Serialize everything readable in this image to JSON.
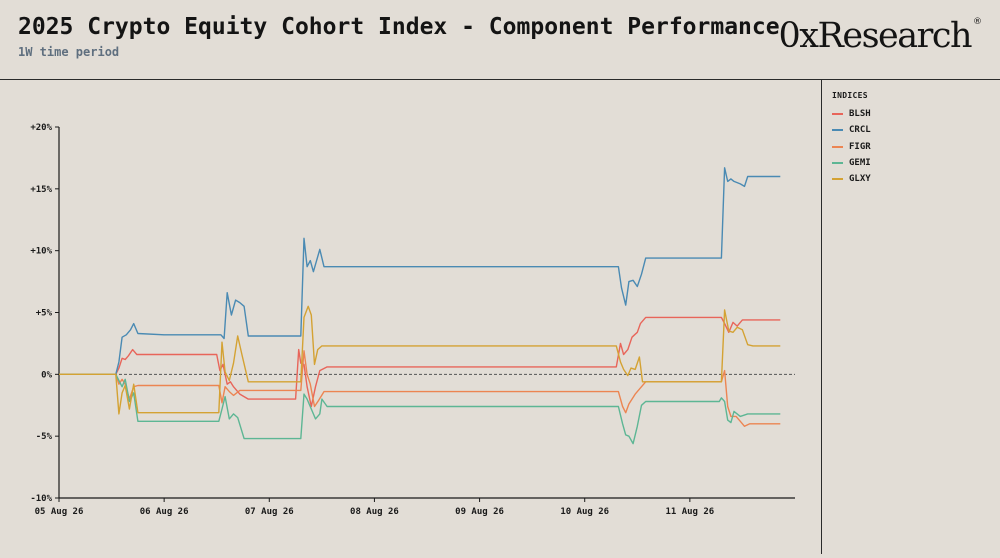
{
  "header": {
    "title": "2025 Crypto Equity Cohort Index - Component Performance",
    "subtitle": "1W time period",
    "logo": "0xResearch",
    "logo_mark": "®"
  },
  "legend": {
    "title": "INDICES"
  },
  "chart_data": {
    "type": "line",
    "title": "2025 Crypto Equity Cohort Index - Component Performance",
    "subtitle": "1W time period",
    "xlabel": "",
    "ylabel": "",
    "x_unit": "day",
    "xlim": [
      0,
      7.0
    ],
    "ylim": [
      -10,
      20
    ],
    "x_ticks": [
      {
        "label": "05 Aug 26",
        "value": 0
      },
      {
        "label": "06 Aug 26",
        "value": 1
      },
      {
        "label": "07 Aug 26",
        "value": 2
      },
      {
        "label": "08 Aug 26",
        "value": 3
      },
      {
        "label": "09 Aug 26",
        "value": 4
      },
      {
        "label": "10 Aug 26",
        "value": 5
      },
      {
        "label": "11 Aug 26",
        "value": 6
      }
    ],
    "y_ticks": [
      {
        "label": "+20%",
        "value": 20
      },
      {
        "label": "+15%",
        "value": 15
      },
      {
        "label": "+10%",
        "value": 10
      },
      {
        "label": "+5%",
        "value": 5
      },
      {
        "label": "0%",
        "value": 0
      },
      {
        "label": "-5%",
        "value": -5
      },
      {
        "label": "-10%",
        "value": -10
      }
    ],
    "zero_line": true,
    "grid": false,
    "legend_position": "right",
    "series": [
      {
        "name": "BLSH",
        "color": "#e8655a",
        "points": [
          [
            0,
            0
          ],
          [
            0.54,
            0
          ],
          [
            0.57,
            0.5
          ],
          [
            0.6,
            1.3
          ],
          [
            0.63,
            1.2
          ],
          [
            0.66,
            1.5
          ],
          [
            0.7,
            2.0
          ],
          [
            0.74,
            1.6
          ],
          [
            1.0,
            1.6
          ],
          [
            1.5,
            1.6
          ],
          [
            1.53,
            0.3
          ],
          [
            1.56,
            0.8
          ],
          [
            1.6,
            -0.8
          ],
          [
            1.63,
            -0.6
          ],
          [
            1.66,
            -1.0
          ],
          [
            1.72,
            -1.6
          ],
          [
            1.8,
            -2.0
          ],
          [
            2.0,
            -2.0
          ],
          [
            2.25,
            -2.0
          ],
          [
            2.28,
            2.0
          ],
          [
            2.3,
            0.9
          ],
          [
            2.33,
            0.8
          ],
          [
            2.36,
            -1.0
          ],
          [
            2.4,
            -2.6
          ],
          [
            2.44,
            -1.0
          ],
          [
            2.48,
            0.3
          ],
          [
            2.55,
            0.6
          ],
          [
            3.0,
            0.6
          ],
          [
            4.0,
            0.6
          ],
          [
            5.0,
            0.6
          ],
          [
            5.3,
            0.6
          ],
          [
            5.34,
            2.5
          ],
          [
            5.37,
            1.6
          ],
          [
            5.41,
            2.0
          ],
          [
            5.45,
            3.0
          ],
          [
            5.5,
            3.4
          ],
          [
            5.53,
            4.1
          ],
          [
            5.58,
            4.6
          ],
          [
            6.0,
            4.6
          ],
          [
            6.3,
            4.6
          ],
          [
            6.33,
            4.1
          ],
          [
            6.37,
            3.4
          ],
          [
            6.41,
            4.2
          ],
          [
            6.45,
            3.9
          ],
          [
            6.5,
            4.4
          ],
          [
            6.6,
            4.4
          ],
          [
            6.86,
            4.4
          ]
        ]
      },
      {
        "name": "CRCL",
        "color": "#4a8ab3",
        "points": [
          [
            0,
            0
          ],
          [
            0.54,
            0
          ],
          [
            0.57,
            1.0
          ],
          [
            0.6,
            3.0
          ],
          [
            0.64,
            3.2
          ],
          [
            0.68,
            3.6
          ],
          [
            0.71,
            4.1
          ],
          [
            0.75,
            3.3
          ],
          [
            1.0,
            3.2
          ],
          [
            1.54,
            3.2
          ],
          [
            1.57,
            2.9
          ],
          [
            1.6,
            6.6
          ],
          [
            1.64,
            4.8
          ],
          [
            1.68,
            6.0
          ],
          [
            1.72,
            5.8
          ],
          [
            1.76,
            5.5
          ],
          [
            1.8,
            3.1
          ],
          [
            2.0,
            3.1
          ],
          [
            2.3,
            3.1
          ],
          [
            2.33,
            11.0
          ],
          [
            2.36,
            8.7
          ],
          [
            2.39,
            9.2
          ],
          [
            2.42,
            8.3
          ],
          [
            2.45,
            9.2
          ],
          [
            2.48,
            10.1
          ],
          [
            2.52,
            8.7
          ],
          [
            3.0,
            8.7
          ],
          [
            4.0,
            8.7
          ],
          [
            5.0,
            8.7
          ],
          [
            5.32,
            8.7
          ],
          [
            5.35,
            7.0
          ],
          [
            5.39,
            5.6
          ],
          [
            5.42,
            7.5
          ],
          [
            5.46,
            7.6
          ],
          [
            5.5,
            7.1
          ],
          [
            5.54,
            8.1
          ],
          [
            5.58,
            9.4
          ],
          [
            6.0,
            9.4
          ],
          [
            6.3,
            9.4
          ],
          [
            6.33,
            16.7
          ],
          [
            6.36,
            15.6
          ],
          [
            6.39,
            15.8
          ],
          [
            6.42,
            15.6
          ],
          [
            6.48,
            15.4
          ],
          [
            6.52,
            15.2
          ],
          [
            6.55,
            16.0
          ],
          [
            6.86,
            16.0
          ]
        ]
      },
      {
        "name": "FIGR",
        "color": "#ec8552",
        "points": [
          [
            0,
            0
          ],
          [
            0.54,
            0
          ],
          [
            0.57,
            -0.8
          ],
          [
            0.6,
            -0.4
          ],
          [
            0.63,
            -0.8
          ],
          [
            0.67,
            -2.0
          ],
          [
            0.71,
            -1.0
          ],
          [
            0.75,
            -0.9
          ],
          [
            1.0,
            -0.9
          ],
          [
            1.52,
            -0.9
          ],
          [
            1.55,
            -2.3
          ],
          [
            1.58,
            -1.0
          ],
          [
            1.62,
            -1.4
          ],
          [
            1.66,
            -1.7
          ],
          [
            1.72,
            -1.3
          ],
          [
            2.0,
            -1.3
          ],
          [
            2.3,
            -1.3
          ],
          [
            2.33,
            1.9
          ],
          [
            2.36,
            0.0
          ],
          [
            2.39,
            -0.8
          ],
          [
            2.43,
            -2.6
          ],
          [
            2.47,
            -2.1
          ],
          [
            2.52,
            -1.4
          ],
          [
            3.0,
            -1.4
          ],
          [
            4.0,
            -1.4
          ],
          [
            5.0,
            -1.4
          ],
          [
            5.32,
            -1.4
          ],
          [
            5.36,
            -2.6
          ],
          [
            5.39,
            -3.1
          ],
          [
            5.42,
            -2.4
          ],
          [
            5.48,
            -1.6
          ],
          [
            5.54,
            -1.0
          ],
          [
            5.58,
            -0.6
          ],
          [
            6.0,
            -0.6
          ],
          [
            6.3,
            -0.6
          ],
          [
            6.33,
            0.3
          ],
          [
            6.36,
            -2.6
          ],
          [
            6.39,
            -3.4
          ],
          [
            6.44,
            -3.4
          ],
          [
            6.48,
            -3.8
          ],
          [
            6.52,
            -4.2
          ],
          [
            6.57,
            -4.0
          ],
          [
            6.86,
            -4.0
          ]
        ]
      },
      {
        "name": "GEMI",
        "color": "#5db694",
        "points": [
          [
            0,
            0
          ],
          [
            0.54,
            0
          ],
          [
            0.57,
            -0.5
          ],
          [
            0.6,
            -1.0
          ],
          [
            0.63,
            -0.4
          ],
          [
            0.67,
            -2.2
          ],
          [
            0.71,
            -1.5
          ],
          [
            0.75,
            -3.8
          ],
          [
            1.0,
            -3.8
          ],
          [
            1.52,
            -3.8
          ],
          [
            1.55,
            -2.8
          ],
          [
            1.58,
            -1.8
          ],
          [
            1.62,
            -3.6
          ],
          [
            1.66,
            -3.2
          ],
          [
            1.7,
            -3.5
          ],
          [
            1.76,
            -5.2
          ],
          [
            2.0,
            -5.2
          ],
          [
            2.3,
            -5.2
          ],
          [
            2.33,
            -1.6
          ],
          [
            2.36,
            -2.0
          ],
          [
            2.4,
            -2.8
          ],
          [
            2.44,
            -3.6
          ],
          [
            2.48,
            -3.2
          ],
          [
            2.5,
            -2.0
          ],
          [
            2.55,
            -2.6
          ],
          [
            3.0,
            -2.6
          ],
          [
            4.0,
            -2.6
          ],
          [
            5.0,
            -2.6
          ],
          [
            5.32,
            -2.6
          ],
          [
            5.36,
            -4.0
          ],
          [
            5.39,
            -4.9
          ],
          [
            5.42,
            -5.0
          ],
          [
            5.46,
            -5.6
          ],
          [
            5.5,
            -4.2
          ],
          [
            5.54,
            -2.5
          ],
          [
            5.58,
            -2.2
          ],
          [
            6.0,
            -2.2
          ],
          [
            6.28,
            -2.2
          ],
          [
            6.3,
            -1.9
          ],
          [
            6.33,
            -2.2
          ],
          [
            6.36,
            -3.7
          ],
          [
            6.39,
            -3.9
          ],
          [
            6.42,
            -3.0
          ],
          [
            6.48,
            -3.4
          ],
          [
            6.55,
            -3.2
          ],
          [
            6.86,
            -3.2
          ]
        ]
      },
      {
        "name": "GLXY",
        "color": "#d4a233",
        "points": [
          [
            0,
            0
          ],
          [
            0.54,
            0
          ],
          [
            0.57,
            -3.2
          ],
          [
            0.6,
            -1.5
          ],
          [
            0.63,
            -0.9
          ],
          [
            0.67,
            -2.8
          ],
          [
            0.71,
            -0.8
          ],
          [
            0.75,
            -3.1
          ],
          [
            1.0,
            -3.1
          ],
          [
            1.52,
            -3.1
          ],
          [
            1.55,
            2.6
          ],
          [
            1.58,
            0.2
          ],
          [
            1.62,
            -0.5
          ],
          [
            1.66,
            0.9
          ],
          [
            1.7,
            3.1
          ],
          [
            1.74,
            1.6
          ],
          [
            1.8,
            -0.6
          ],
          [
            2.0,
            -0.6
          ],
          [
            2.3,
            -0.6
          ],
          [
            2.33,
            4.6
          ],
          [
            2.37,
            5.5
          ],
          [
            2.4,
            4.8
          ],
          [
            2.43,
            0.8
          ],
          [
            2.46,
            2.0
          ],
          [
            2.5,
            2.3
          ],
          [
            3.0,
            2.3
          ],
          [
            4.0,
            2.3
          ],
          [
            5.0,
            2.3
          ],
          [
            5.3,
            2.3
          ],
          [
            5.34,
            1.0
          ],
          [
            5.37,
            0.4
          ],
          [
            5.41,
            -0.1
          ],
          [
            5.44,
            0.5
          ],
          [
            5.48,
            0.4
          ],
          [
            5.52,
            1.4
          ],
          [
            5.55,
            -0.6
          ],
          [
            6.0,
            -0.6
          ],
          [
            6.3,
            -0.6
          ],
          [
            6.33,
            5.2
          ],
          [
            6.37,
            3.5
          ],
          [
            6.41,
            3.4
          ],
          [
            6.45,
            3.8
          ],
          [
            6.5,
            3.6
          ],
          [
            6.55,
            2.4
          ],
          [
            6.6,
            2.3
          ],
          [
            6.86,
            2.3
          ]
        ]
      }
    ]
  }
}
